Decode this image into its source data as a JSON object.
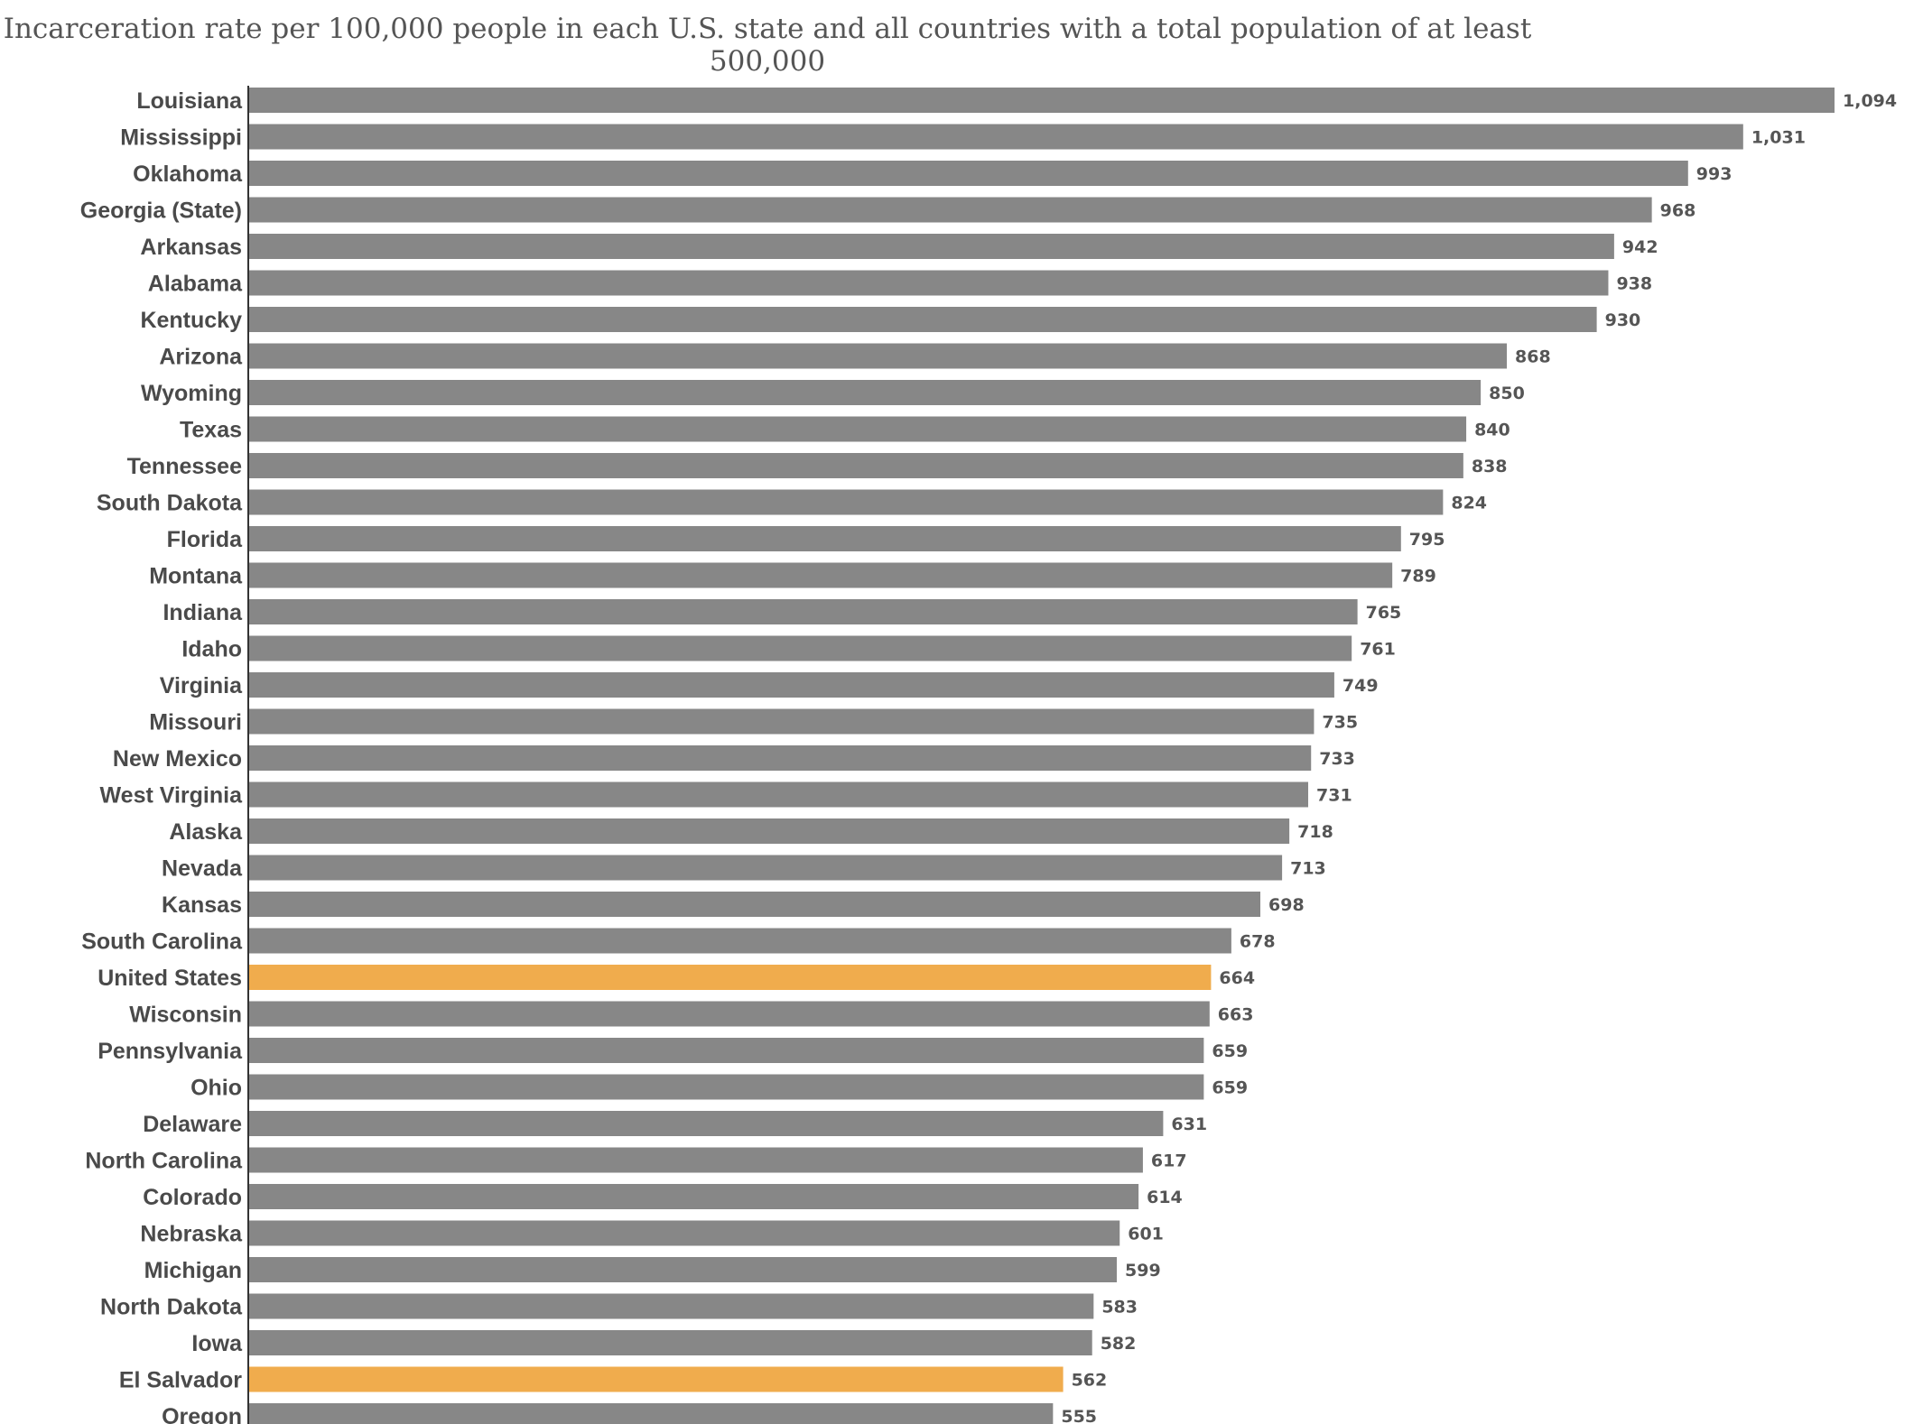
{
  "chart_data": {
    "type": "bar",
    "orientation": "horizontal",
    "title": "Incarceration rate per 100,000 people in each U.S. state and all countries with a total population of at least 500,000",
    "xlabel": "",
    "ylabel": "",
    "grid": false,
    "legend": "none",
    "xlim": [
      0,
      1094
    ],
    "colors": {
      "default": "#878787",
      "highlight": "#f0ac4d"
    },
    "categories": [
      "Louisiana",
      "Mississippi",
      "Oklahoma",
      "Georgia (State)",
      "Arkansas",
      "Alabama",
      "Kentucky",
      "Arizona",
      "Wyoming",
      "Texas",
      "Tennessee",
      "South Dakota",
      "Florida",
      "Montana",
      "Indiana",
      "Idaho",
      "Virginia",
      "Missouri",
      "New Mexico",
      "West Virginia",
      "Alaska",
      "Nevada",
      "Kansas",
      "South Carolina",
      "United States",
      "Wisconsin",
      "Pennsylvania",
      "Ohio",
      "Delaware",
      "North Carolina",
      "Colorado",
      "Nebraska",
      "Michigan",
      "North Dakota",
      "Iowa",
      "El Salvador",
      "Oregon"
    ],
    "values": [
      1094,
      1031,
      993,
      968,
      942,
      938,
      930,
      868,
      850,
      840,
      838,
      824,
      795,
      789,
      765,
      761,
      749,
      735,
      733,
      731,
      718,
      713,
      698,
      678,
      664,
      663,
      659,
      659,
      631,
      617,
      614,
      601,
      599,
      583,
      582,
      562,
      555
    ],
    "value_labels": [
      "1,094",
      "1,031",
      "993",
      "968",
      "942",
      "938",
      "930",
      "868",
      "850",
      "840",
      "838",
      "824",
      "795",
      "789",
      "765",
      "761",
      "749",
      "735",
      "733",
      "731",
      "718",
      "713",
      "698",
      "678",
      "664",
      "663",
      "659",
      "659",
      "631",
      "617",
      "614",
      "601",
      "599",
      "583",
      "582",
      "562",
      "555"
    ],
    "highlighted": [
      "United States",
      "El Salvador"
    ]
  }
}
